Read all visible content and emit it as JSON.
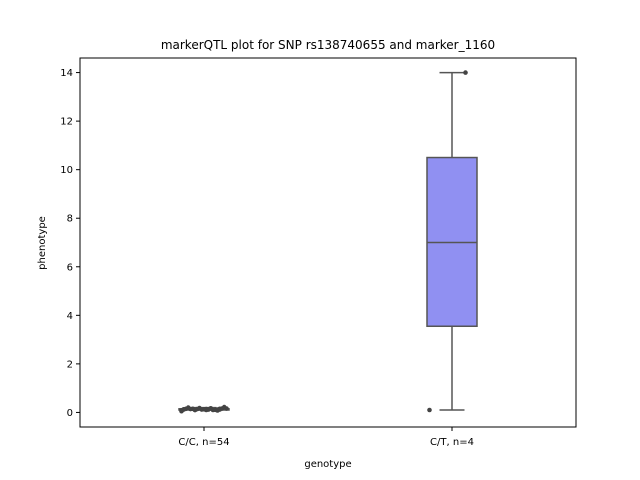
{
  "chart_data": {
    "type": "box",
    "title": "markerQTL plot for SNP rs138740655 and marker_1160",
    "xlabel": "genotype",
    "ylabel": "phenotype",
    "ylim": [
      -0.6,
      14.6
    ],
    "yticks": [
      0,
      2,
      4,
      6,
      8,
      10,
      12,
      14
    ],
    "grid": false,
    "categories": [
      "C/C, n=54",
      "C/T, n=4"
    ],
    "boxes": [
      {
        "category": "C/C, n=54",
        "min": 0.1,
        "q1": 0.1,
        "median": 0.12,
        "q3": 0.15,
        "max": 0.2,
        "points": [
          0.05,
          0.08,
          0.1,
          0.1,
          0.12,
          0.12,
          0.13,
          0.14,
          0.15,
          0.16,
          0.17,
          0.18,
          0.2,
          0.22,
          0.1,
          0.12,
          0.14,
          0.16,
          0.11,
          0.13,
          0.15,
          0.09,
          0.12,
          0.14,
          0.1,
          0.13,
          0.15,
          0.12
        ],
        "color": "#d0d0ff"
      },
      {
        "category": "C/T, n=4",
        "min": 0.1,
        "q1": 3.55,
        "median": 7.0,
        "q3": 10.5,
        "max": 14.0,
        "points": [
          0.1,
          14.0
        ],
        "color": "#9090f2"
      }
    ],
    "box_edge_color": "#555555",
    "point_color": "#444444"
  }
}
